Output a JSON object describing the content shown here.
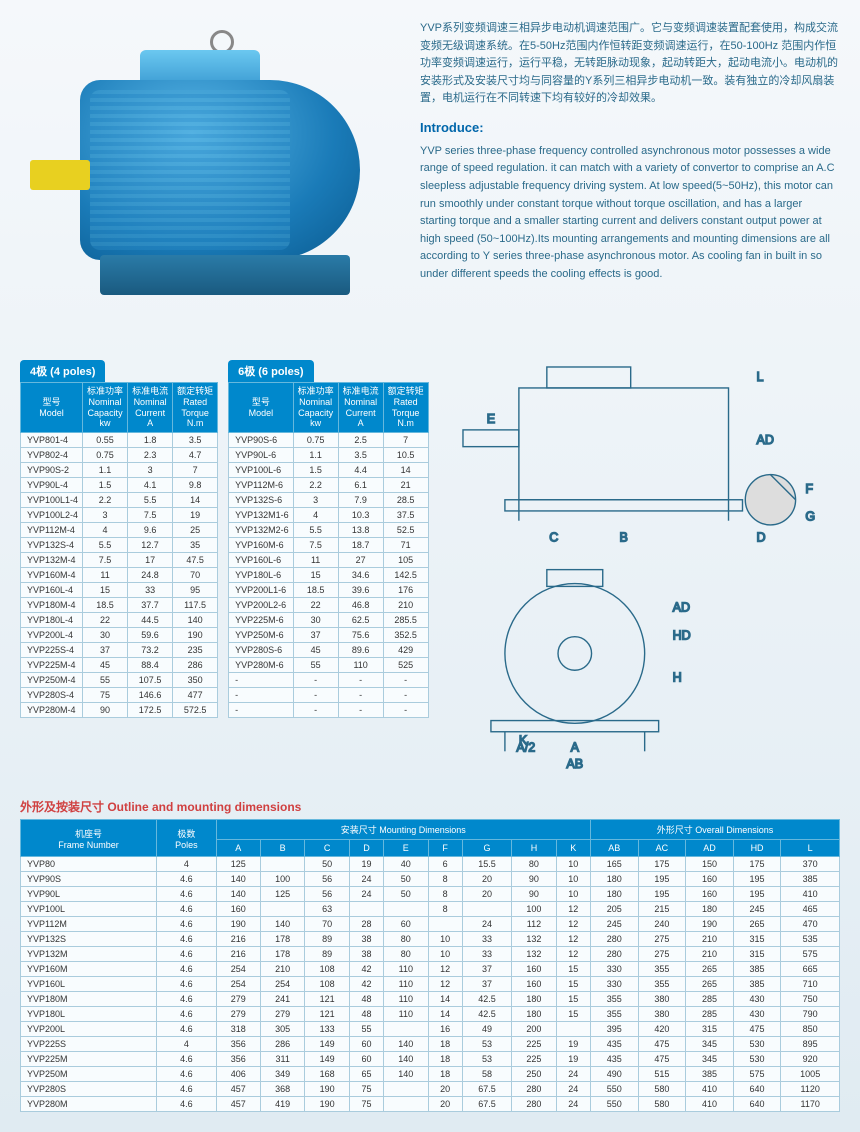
{
  "colors": {
    "header_bg": "#0088cc",
    "header_text": "#ffffff",
    "cell_border": "#aaccdd",
    "cell_bg": "#f8fcfe",
    "title_red": "#d04040",
    "body_text": "#2a6a8a",
    "motor_blue": "#2a8bc8",
    "shaft_yellow": "#e8d020"
  },
  "intro": {
    "chinese": "YVP系列变频调速三相异步电动机调速范围广。它与变频调速装置配套使用，构成交流变频无级调速系统。在5-50Hz范围内作恒转距变频调速运行，在50-100Hz 范围内作恒功率变频调速运行，运行平稳，无转距脉动现象，起动转距大，起动电流小。电动机的安装形式及安装尺寸均与同容量的Y系列三相异步电动机一致。装有独立的冷却风扇装置，电机运行在不同转速下均有较好的冷却效果。",
    "title": "Introduce:",
    "english": "YVP series three-phase frequency controlled asynchronous motor possesses a wide range of speed regulation. it can match with a variety of convertor to comprise an A.C sleepless adjustable frequency driving system. At low speed(5~50Hz), this motor can run smoothly under constant torque without torque oscillation, and has a larger starting torque and a smaller starting current and delivers constant output power at high speed (50~100Hz).Its mounting arrangements and mounting dimensions are all according to Y series three-phase asynchronous motor. As cooling fan in built in so under different speeds the cooling effects is good."
  },
  "poles4": {
    "label": "4极 (4 poles)",
    "headers": [
      "型号\nModel",
      "标准功率\nNominal\nCapacity\nkw",
      "标准电流\nNominal\nCurrent\nA",
      "额定转矩\nRated\nTorque\nN.m"
    ],
    "rows": [
      [
        "YVP801-4",
        "0.55",
        "1.8",
        "3.5"
      ],
      [
        "YVP802-4",
        "0.75",
        "2.3",
        "4.7"
      ],
      [
        "YVP90S-2",
        "1.1",
        "3",
        "7"
      ],
      [
        "YVP90L-4",
        "1.5",
        "4.1",
        "9.8"
      ],
      [
        "YVP100L1-4",
        "2.2",
        "5.5",
        "14"
      ],
      [
        "YVP100L2-4",
        "3",
        "7.5",
        "19"
      ],
      [
        "YVP112M-4",
        "4",
        "9.6",
        "25"
      ],
      [
        "YVP132S-4",
        "5.5",
        "12.7",
        "35"
      ],
      [
        "YVP132M-4",
        "7.5",
        "17",
        "47.5"
      ],
      [
        "YVP160M-4",
        "11",
        "24.8",
        "70"
      ],
      [
        "YVP160L-4",
        "15",
        "33",
        "95"
      ],
      [
        "YVP180M-4",
        "18.5",
        "37.7",
        "117.5"
      ],
      [
        "YVP180L-4",
        "22",
        "44.5",
        "140"
      ],
      [
        "YVP200L-4",
        "30",
        "59.6",
        "190"
      ],
      [
        "YVP225S-4",
        "37",
        "73.2",
        "235"
      ],
      [
        "YVP225M-4",
        "45",
        "88.4",
        "286"
      ],
      [
        "YVP250M-4",
        "55",
        "107.5",
        "350"
      ],
      [
        "YVP280S-4",
        "75",
        "146.6",
        "477"
      ],
      [
        "YVP280M-4",
        "90",
        "172.5",
        "572.5"
      ]
    ]
  },
  "poles6": {
    "label": "6极 (6 poles)",
    "headers": [
      "型号\nModel",
      "标准功率\nNominal\nCapacity\nkw",
      "标准电流\nNominal\nCurrent\nA",
      "额定转矩\nRated\nTorque\nN.m"
    ],
    "rows": [
      [
        "YVP90S-6",
        "0.75",
        "2.5",
        "7"
      ],
      [
        "YVP90L-6",
        "1.1",
        "3.5",
        "10.5"
      ],
      [
        "YVP100L-6",
        "1.5",
        "4.4",
        "14"
      ],
      [
        "YVP112M-6",
        "2.2",
        "6.1",
        "21"
      ],
      [
        "YVP132S-6",
        "3",
        "7.9",
        "28.5"
      ],
      [
        "YVP132M1-6",
        "4",
        "10.3",
        "37.5"
      ],
      [
        "YVP132M2-6",
        "5.5",
        "13.8",
        "52.5"
      ],
      [
        "YVP160M-6",
        "7.5",
        "18.7",
        "71"
      ],
      [
        "YVP160L-6",
        "11",
        "27",
        "105"
      ],
      [
        "YVP180L-6",
        "15",
        "34.6",
        "142.5"
      ],
      [
        "YVP200L1-6",
        "18.5",
        "39.6",
        "176"
      ],
      [
        "YVP200L2-6",
        "22",
        "46.8",
        "210"
      ],
      [
        "YVP225M-6",
        "30",
        "62.5",
        "285.5"
      ],
      [
        "YVP250M-6",
        "37",
        "75.6",
        "352.5"
      ],
      [
        "YVP280S-6",
        "45",
        "89.6",
        "429"
      ],
      [
        "YVP280M-6",
        "55",
        "110",
        "525"
      ],
      [
        "-",
        "-",
        "-",
        "-"
      ],
      [
        "-",
        "-",
        "-",
        "-"
      ],
      [
        "-",
        "-",
        "-",
        "-"
      ]
    ]
  },
  "dims": {
    "title": "外形及按装尺寸 Outline and mounting dimensions",
    "group_headers": [
      "机座号\nFrame Number",
      "极数\nPoles",
      "安装尺寸 Mounting Dimensions",
      "外形尺寸 Overall Dimensions"
    ],
    "sub_headers": [
      "A",
      "B",
      "C",
      "D",
      "E",
      "F",
      "G",
      "H",
      "K",
      "AB",
      "AC",
      "AD",
      "HD",
      "L"
    ],
    "rows": [
      {
        "frame": "YVP80",
        "poles": "4",
        "A": "125",
        "B": "",
        "C": "50",
        "D": "19",
        "E": "40",
        "F": "6",
        "G": "15.5",
        "H": "80",
        "K": "10",
        "AB": "165",
        "AC": "175",
        "AD": "150",
        "HD": "175",
        "L": "370"
      },
      {
        "frame": "YVP90S",
        "poles": "4.6",
        "A": "140",
        "B": "100",
        "C": "56",
        "D": "24",
        "E": "50",
        "F": "8",
        "G": "20",
        "H": "90",
        "K": "10",
        "AB": "180",
        "AC": "195",
        "AD": "160",
        "HD": "195",
        "L": "385"
      },
      {
        "frame": "YVP90L",
        "poles": "4.6",
        "A": "140",
        "B": "125",
        "C": "56",
        "D": "24",
        "E": "50",
        "F": "8",
        "G": "20",
        "H": "90",
        "K": "10",
        "AB": "180",
        "AC": "195",
        "AD": "160",
        "HD": "195",
        "L": "410"
      },
      {
        "frame": "YVP100L",
        "poles": "4.6",
        "A": "160",
        "B": "",
        "C": "63",
        "D": "",
        "E": "",
        "F": "8",
        "G": "",
        "H": "100",
        "K": "12",
        "AB": "205",
        "AC": "215",
        "AD": "180",
        "HD": "245",
        "L": "465"
      },
      {
        "frame": "YVP112M",
        "poles": "4.6",
        "A": "190",
        "B": "140",
        "C": "70",
        "D": "28",
        "E": "60",
        "F": "",
        "G": "24",
        "H": "112",
        "K": "12",
        "AB": "245",
        "AC": "240",
        "AD": "190",
        "HD": "265",
        "L": "470"
      },
      {
        "frame": "YVP132S",
        "poles": "4.6",
        "A": "216",
        "B": "178",
        "C": "89",
        "D": "38",
        "E": "80",
        "F": "10",
        "G": "33",
        "H": "132",
        "K": "12",
        "AB": "280",
        "AC": "275",
        "AD": "210",
        "HD": "315",
        "L": "535"
      },
      {
        "frame": "YVP132M",
        "poles": "4.6",
        "A": "216",
        "B": "178",
        "C": "89",
        "D": "38",
        "E": "80",
        "F": "10",
        "G": "33",
        "H": "132",
        "K": "12",
        "AB": "280",
        "AC": "275",
        "AD": "210",
        "HD": "315",
        "L": "575"
      },
      {
        "frame": "YVP160M",
        "poles": "4.6",
        "A": "254",
        "B": "210",
        "C": "108",
        "D": "42",
        "E": "110",
        "F": "12",
        "G": "37",
        "H": "160",
        "K": "15",
        "AB": "330",
        "AC": "355",
        "AD": "265",
        "HD": "385",
        "L": "665"
      },
      {
        "frame": "YVP160L",
        "poles": "4.6",
        "A": "254",
        "B": "254",
        "C": "108",
        "D": "42",
        "E": "110",
        "F": "12",
        "G": "37",
        "H": "160",
        "K": "15",
        "AB": "330",
        "AC": "355",
        "AD": "265",
        "HD": "385",
        "L": "710"
      },
      {
        "frame": "YVP180M",
        "poles": "4.6",
        "A": "279",
        "B": "241",
        "C": "121",
        "D": "48",
        "E": "110",
        "F": "14",
        "G": "42.5",
        "H": "180",
        "K": "15",
        "AB": "355",
        "AC": "380",
        "AD": "285",
        "HD": "430",
        "L": "750"
      },
      {
        "frame": "YVP180L",
        "poles": "4.6",
        "A": "279",
        "B": "279",
        "C": "121",
        "D": "48",
        "E": "110",
        "F": "14",
        "G": "42.5",
        "H": "180",
        "K": "15",
        "AB": "355",
        "AC": "380",
        "AD": "285",
        "HD": "430",
        "L": "790"
      },
      {
        "frame": "YVP200L",
        "poles": "4.6",
        "A": "318",
        "B": "305",
        "C": "133",
        "D": "55",
        "E": "",
        "F": "16",
        "G": "49",
        "H": "200",
        "K": "",
        "AB": "395",
        "AC": "420",
        "AD": "315",
        "HD": "475",
        "L": "850"
      },
      {
        "frame": "YVP225S",
        "poles": "4",
        "A": "356",
        "B": "286",
        "C": "149",
        "D": "60",
        "E": "140",
        "F": "18",
        "G": "53",
        "H": "225",
        "K": "19",
        "AB": "435",
        "AC": "475",
        "AD": "345",
        "HD": "530",
        "L": "895"
      },
      {
        "frame": "YVP225M",
        "poles": "4.6",
        "A": "356",
        "B": "311",
        "C": "149",
        "D": "60",
        "E": "140",
        "F": "18",
        "G": "53",
        "H": "225",
        "K": "19",
        "AB": "435",
        "AC": "475",
        "AD": "345",
        "HD": "530",
        "L": "920"
      },
      {
        "frame": "YVP250M",
        "poles": "4.6",
        "A": "406",
        "B": "349",
        "C": "168",
        "D": "65",
        "E": "140",
        "F": "18",
        "G": "58",
        "H": "250",
        "K": "24",
        "AB": "490",
        "AC": "515",
        "AD": "385",
        "HD": "575",
        "L": "1005"
      },
      {
        "frame": "YVP280S",
        "poles": "4.6",
        "A": "457",
        "B": "368",
        "C": "190",
        "D": "75",
        "E": "",
        "F": "20",
        "G": "67.5",
        "H": "280",
        "K": "24",
        "AB": "550",
        "AC": "580",
        "AD": "410",
        "HD": "640",
        "L": "1120"
      },
      {
        "frame": "YVP280M",
        "poles": "4.6",
        "A": "457",
        "B": "419",
        "C": "190",
        "D": "75",
        "E": "",
        "F": "20",
        "G": "67.5",
        "H": "280",
        "K": "24",
        "AB": "550",
        "AC": "580",
        "AD": "410",
        "HD": "640",
        "L": "1170"
      }
    ]
  }
}
